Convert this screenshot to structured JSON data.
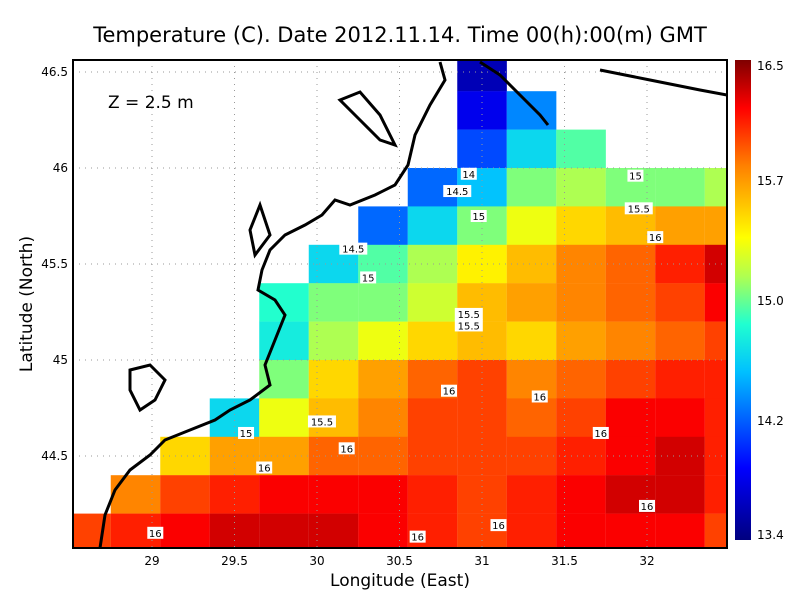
{
  "chart_data": {
    "type": "heatmap",
    "title": "Temperature (C). Date 2012.11.14. Time 00(h):00(m) GMT",
    "annotation": "Z = 2.5 m",
    "xlabel": "Longitude (East)",
    "ylabel": "Latitude (North)",
    "xlim": [
      28.52,
      32.48
    ],
    "ylim": [
      44.03,
      46.56
    ],
    "xticks": [
      "29",
      "29.5",
      "30",
      "30.5",
      "31",
      "31.5",
      "32"
    ],
    "yticks": [
      "44.5",
      "45",
      "45.5",
      "46",
      "46.5"
    ],
    "grid": true,
    "colorbar": {
      "range": [
        13.4,
        16.5
      ],
      "labels": [
        "16.5",
        "15.7",
        "15.0",
        "14.2",
        "13.4"
      ],
      "colormap": "jet",
      "placement": "right"
    },
    "lons": [
      28.6,
      28.9,
      29.2,
      29.5,
      29.8,
      30.1,
      30.4,
      30.7,
      31.0,
      31.3,
      31.6,
      31.9,
      32.2,
      32.5
    ],
    "lats": [
      46.5,
      46.3,
      46.1,
      45.9,
      45.7,
      45.5,
      45.3,
      45.1,
      44.9,
      44.7,
      44.5,
      44.3,
      44.1
    ],
    "values": [
      [
        null,
        null,
        null,
        null,
        null,
        null,
        null,
        null,
        13.6,
        null,
        null,
        null,
        null,
        null
      ],
      [
        null,
        null,
        null,
        null,
        null,
        null,
        null,
        null,
        13.8,
        14.3,
        null,
        null,
        null,
        null
      ],
      [
        null,
        null,
        null,
        null,
        null,
        null,
        null,
        null,
        14.1,
        14.6,
        14.9,
        null,
        null,
        null
      ],
      [
        null,
        null,
        null,
        null,
        null,
        null,
        null,
        14.2,
        14.5,
        15.0,
        15.1,
        15.0,
        15.0,
        15.1
      ],
      [
        null,
        null,
        null,
        null,
        null,
        null,
        14.2,
        14.6,
        15.0,
        15.3,
        15.5,
        15.6,
        15.7,
        15.7
      ],
      [
        null,
        null,
        null,
        null,
        null,
        14.6,
        14.9,
        15.1,
        15.4,
        15.6,
        15.8,
        15.9,
        16.1,
        16.3
      ],
      [
        null,
        null,
        null,
        null,
        14.8,
        15.0,
        15.0,
        15.2,
        15.6,
        15.7,
        15.8,
        15.9,
        16.0,
        16.2
      ],
      [
        null,
        null,
        null,
        null,
        14.7,
        15.1,
        15.3,
        15.5,
        15.6,
        15.5,
        15.7,
        15.8,
        15.9,
        16.0
      ],
      [
        null,
        null,
        null,
        null,
        15.0,
        15.5,
        15.7,
        15.9,
        16.0,
        15.8,
        15.9,
        16.0,
        16.1,
        16.1
      ],
      [
        null,
        null,
        null,
        14.6,
        15.3,
        15.6,
        15.8,
        16.0,
        16.0,
        15.9,
        16.0,
        16.2,
        16.2,
        16.1
      ],
      [
        null,
        null,
        15.5,
        15.7,
        15.7,
        15.9,
        15.9,
        16.0,
        16.0,
        16.0,
        16.1,
        16.2,
        16.3,
        16.1
      ],
      [
        null,
        15.8,
        16.0,
        16.1,
        16.2,
        16.2,
        16.2,
        16.1,
        16.0,
        16.1,
        16.2,
        16.3,
        16.3,
        16.1
      ],
      [
        16.0,
        16.1,
        16.2,
        16.3,
        16.3,
        16.3,
        16.2,
        16.1,
        16.0,
        16.1,
        16.2,
        16.2,
        16.2,
        16.0
      ]
    ],
    "contour_labels": [
      {
        "text": "14",
        "lon": 30.92,
        "lat": 45.97
      },
      {
        "text": "14.5",
        "lon": 30.85,
        "lat": 45.88
      },
      {
        "text": "15",
        "lon": 30.98,
        "lat": 45.75
      },
      {
        "text": "14.5",
        "lon": 30.22,
        "lat": 45.58
      },
      {
        "text": "15",
        "lon": 30.31,
        "lat": 45.43
      },
      {
        "text": "15.5",
        "lon": 30.92,
        "lat": 45.24
      },
      {
        "text": "15.5",
        "lon": 30.92,
        "lat": 45.18
      },
      {
        "text": "15",
        "lon": 31.93,
        "lat": 45.96
      },
      {
        "text": "15.5",
        "lon": 31.95,
        "lat": 45.79
      },
      {
        "text": "16",
        "lon": 32.05,
        "lat": 45.64
      },
      {
        "text": "16",
        "lon": 30.8,
        "lat": 44.84
      },
      {
        "text": "16",
        "lon": 31.35,
        "lat": 44.81
      },
      {
        "text": "16",
        "lon": 31.72,
        "lat": 44.62
      },
      {
        "text": "15.5",
        "lon": 30.03,
        "lat": 44.68
      },
      {
        "text": "15",
        "lon": 29.57,
        "lat": 44.62
      },
      {
        "text": "16",
        "lon": 30.18,
        "lat": 44.54
      },
      {
        "text": "16",
        "lon": 29.68,
        "lat": 44.44
      },
      {
        "text": "16",
        "lon": 29.02,
        "lat": 44.1
      },
      {
        "text": "16",
        "lon": 30.61,
        "lat": 44.08
      },
      {
        "text": "16",
        "lon": 31.1,
        "lat": 44.14
      },
      {
        "text": "16",
        "lon": 32.0,
        "lat": 44.24
      }
    ]
  }
}
